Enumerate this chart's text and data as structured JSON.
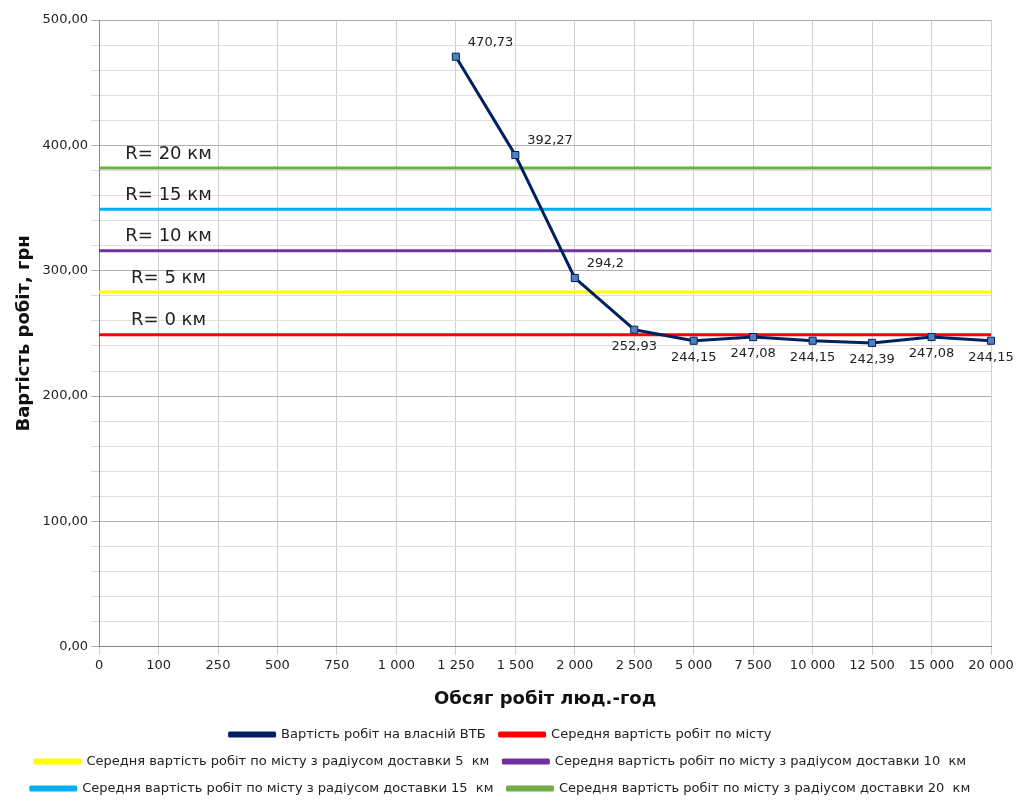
{
  "chart_data": {
    "type": "line",
    "xlabel": "Обсяг робіт люд.-год",
    "ylabel": "Вартість робіт, грн",
    "categories": [
      "0",
      "100",
      "250",
      "500",
      "750",
      "1 000",
      "1 250",
      "1 500",
      "2 000",
      "2 500",
      "5 000",
      "7 500",
      "10 000",
      "12 500",
      "15 000",
      "20 000"
    ],
    "series": [
      {
        "name": "Вартість робіт на власній ВТБ",
        "color": "#002060",
        "marker": "square",
        "values": [
          null,
          null,
          null,
          null,
          null,
          null,
          470.73,
          392.27,
          294.2,
          252.93,
          244.15,
          247.08,
          244.15,
          242.39,
          247.08,
          244.15
        ],
        "value_labels": [
          null,
          null,
          null,
          null,
          null,
          null,
          "470,73",
          "392,27",
          "294,2",
          "252,93",
          "244,15",
          "247,08",
          "244,15",
          "242,39",
          "247,08",
          "244,15"
        ]
      },
      {
        "name": "Середня вартість робіт по місту",
        "color": "#ff0000",
        "marker": "none",
        "values": [
          249,
          249,
          249,
          249,
          249,
          249,
          249,
          249,
          249,
          249,
          249,
          249,
          249,
          249,
          249,
          249
        ]
      },
      {
        "name": "Середня вартість робіт по місту з радіусом доставки 5  км",
        "color": "#ffff00",
        "marker": "none",
        "values": [
          283,
          283,
          283,
          283,
          283,
          283,
          283,
          283,
          283,
          283,
          283,
          283,
          283,
          283,
          283,
          283
        ]
      },
      {
        "name": "Середня вартість робіт по місту з радіусом доставки 10  км",
        "color": "#7030a0",
        "marker": "none",
        "values": [
          316,
          316,
          316,
          316,
          316,
          316,
          316,
          316,
          316,
          316,
          316,
          316,
          316,
          316,
          316,
          316
        ]
      },
      {
        "name": "Середня вартість робіт по місту з радіусом доставки 15  км",
        "color": "#00b0f0",
        "marker": "none",
        "values": [
          349,
          349,
          349,
          349,
          349,
          349,
          349,
          349,
          349,
          349,
          349,
          349,
          349,
          349,
          349,
          349
        ]
      },
      {
        "name": "Середня вартість робіт по місту з радіусом доставки 20  км",
        "color": "#70ad47",
        "marker": "none",
        "values": [
          382,
          382,
          382,
          382,
          382,
          382,
          382,
          382,
          382,
          382,
          382,
          382,
          382,
          382,
          382,
          382
        ]
      }
    ],
    "ylim": [
      0,
      500
    ],
    "yticks": [
      {
        "value": 0,
        "label": "0,00"
      },
      {
        "value": 20,
        "label": null
      },
      {
        "value": 40,
        "label": null
      },
      {
        "value": 60,
        "label": null
      },
      {
        "value": 80,
        "label": null
      },
      {
        "value": 100,
        "label": "100,00"
      },
      {
        "value": 120,
        "label": null
      },
      {
        "value": 140,
        "label": null
      },
      {
        "value": 160,
        "label": null
      },
      {
        "value": 180,
        "label": null
      },
      {
        "value": 200,
        "label": "200,00"
      },
      {
        "value": 220,
        "label": null
      },
      {
        "value": 240,
        "label": null
      },
      {
        "value": 260,
        "label": null
      },
      {
        "value": 280,
        "label": null
      },
      {
        "value": 300,
        "label": "300,00"
      },
      {
        "value": 320,
        "label": null
      },
      {
        "value": 340,
        "label": null
      },
      {
        "value": 360,
        "label": null
      },
      {
        "value": 380,
        "label": null
      },
      {
        "value": 400,
        "label": "400,00"
      },
      {
        "value": 420,
        "label": null
      },
      {
        "value": 440,
        "label": null
      },
      {
        "value": 460,
        "label": null
      },
      {
        "value": 480,
        "label": null
      },
      {
        "value": 500,
        "label": "500,00"
      }
    ],
    "annotations": [
      {
        "text": "R= 20 км",
        "x": "100",
        "y": 382
      },
      {
        "text": "R= 15 км",
        "x": "100",
        "y": 349
      },
      {
        "text": "R= 10 км",
        "x": "100",
        "y": 316
      },
      {
        "text": "R= 5 км",
        "x": "100",
        "y": 283
      },
      {
        "text": "R= 0 км",
        "x": "100",
        "y": 249
      }
    ],
    "grid": true,
    "legend": "bottom",
    "line_style": "solid"
  }
}
